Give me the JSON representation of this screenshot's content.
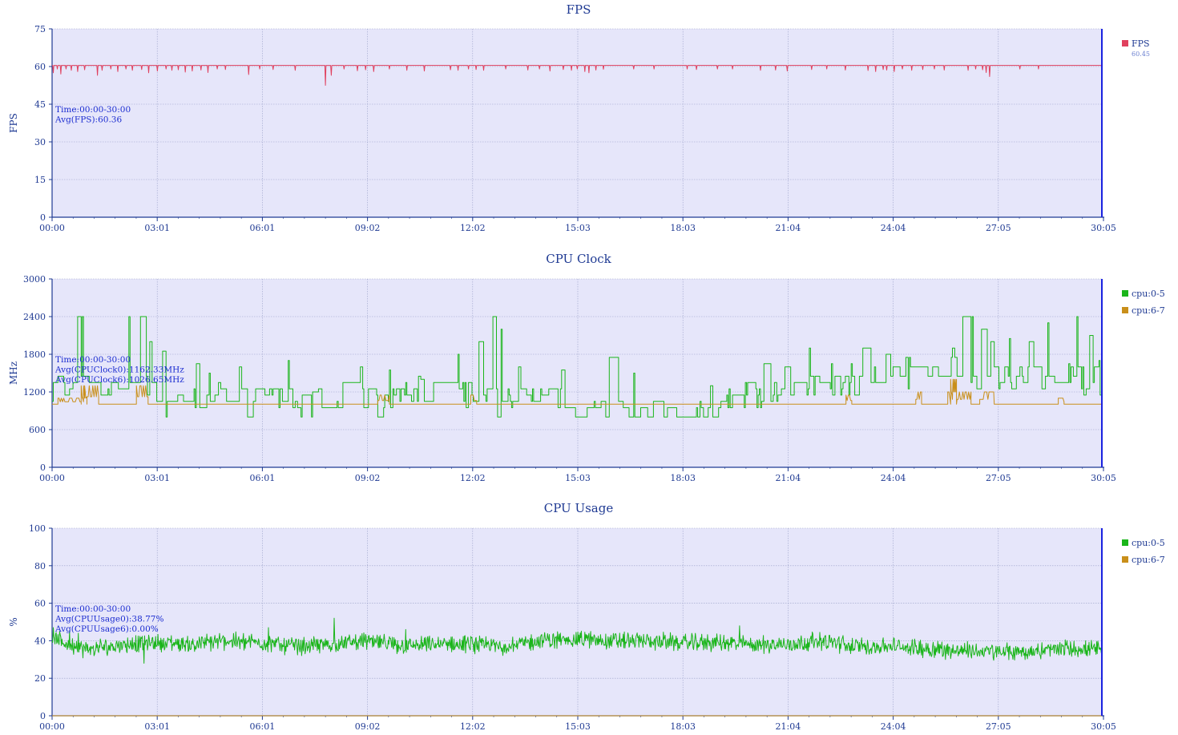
{
  "colors": {
    "plot_bg": "#e6e6fa",
    "grid": "#9aa0c8",
    "axis": "#1f3a93",
    "end_marker": "#1a22e0",
    "fps": "#e0405e",
    "cpu_0_5": "#1ab51a",
    "cpu_6_7": "#c98f1a"
  },
  "chart_data": [
    {
      "type": "line",
      "title": "FPS",
      "ylabel": "FPS",
      "xlabel": "",
      "ylim": [
        0,
        75
      ],
      "yticks": [
        "0",
        "15",
        "30",
        "45",
        "60",
        "75"
      ],
      "xlim_seconds": [
        0,
        1805
      ],
      "xticks": [
        "00:00",
        "03:01",
        "06:01",
        "09:02",
        "12:02",
        "15:03",
        "18:03",
        "21:04",
        "24:04",
        "27:05",
        "30:05"
      ],
      "grid": true,
      "legend_position": "right",
      "legend": [
        {
          "name": "FPS",
          "value": "60.45",
          "color_key": "fps"
        }
      ],
      "annotation": [
        "Time:00:00-30:00",
        "Avg(FPS):60.36"
      ],
      "series": [
        {
          "name": "FPS",
          "color_key": "fps",
          "baseline": 60.45,
          "dips": [
            [
              2,
              57.5
            ],
            [
              9,
              59
            ],
            [
              15,
              57
            ],
            [
              24,
              59
            ],
            [
              33,
              58.5
            ],
            [
              44,
              58
            ],
            [
              56,
              58.7
            ],
            [
              78,
              56.5
            ],
            [
              86,
              58.5
            ],
            [
              101,
              59
            ],
            [
              113,
              58
            ],
            [
              127,
              59
            ],
            [
              138,
              58.5
            ],
            [
              154,
              58.8
            ],
            [
              166,
              57.5
            ],
            [
              181,
              58.2
            ],
            [
              196,
              59
            ],
            [
              206,
              58.5
            ],
            [
              217,
              58.7
            ],
            [
              229,
              57.8
            ],
            [
              241,
              58.2
            ],
            [
              256,
              58.6
            ],
            [
              268,
              57.6
            ],
            [
              284,
              59
            ],
            [
              298,
              58.8
            ],
            [
              338,
              56.8
            ],
            [
              357,
              59
            ],
            [
              380,
              58.8
            ],
            [
              418,
              58.5
            ],
            [
              470,
              52.5
            ],
            [
              480,
              56.5
            ],
            [
              502,
              59
            ],
            [
              525,
              58.3
            ],
            [
              539,
              58.7
            ],
            [
              553,
              58
            ],
            [
              580,
              59
            ],
            [
              610,
              58.5
            ],
            [
              640,
              58.2
            ],
            [
              685,
              58.7
            ],
            [
              698,
              58.5
            ],
            [
              716,
              59
            ],
            [
              729,
              58.8
            ],
            [
              742,
              58.5
            ],
            [
              780,
              59
            ],
            [
              818,
              58.6
            ],
            [
              838,
              59
            ],
            [
              856,
              58.2
            ],
            [
              879,
              58.8
            ],
            [
              893,
              58.5
            ],
            [
              903,
              59
            ],
            [
              916,
              58
            ],
            [
              923,
              57.5
            ],
            [
              935,
              58.6
            ],
            [
              948,
              58.9
            ],
            [
              1000,
              59
            ],
            [
              1035,
              59
            ],
            [
              1092,
              59
            ],
            [
              1108,
              58.8
            ],
            [
              1144,
              59
            ],
            [
              1170,
              59
            ],
            [
              1218,
              58.5
            ],
            [
              1244,
              58.6
            ],
            [
              1264,
              58.2
            ],
            [
              1306,
              58.8
            ],
            [
              1332,
              59
            ],
            [
              1364,
              58.6
            ],
            [
              1403,
              58.4
            ],
            [
              1416,
              58
            ],
            [
              1429,
              58.8
            ],
            [
              1435,
              58.6
            ],
            [
              1448,
              58
            ],
            [
              1462,
              59
            ],
            [
              1478,
              58.5
            ],
            [
              1497,
              58.8
            ],
            [
              1517,
              59
            ],
            [
              1534,
              58.6
            ],
            [
              1575,
              58.5
            ],
            [
              1588,
              59
            ],
            [
              1600,
              58.7
            ],
            [
              1606,
              57.6
            ],
            [
              1612,
              56
            ],
            [
              1664,
              59
            ],
            [
              1696,
              59
            ]
          ]
        }
      ]
    },
    {
      "type": "line",
      "title": "CPU Clock",
      "ylabel": "MHz",
      "xlabel": "",
      "ylim": [
        0,
        3000
      ],
      "yticks": [
        "0",
        "600",
        "1200",
        "1800",
        "2400",
        "3000"
      ],
      "xlim_seconds": [
        0,
        1805
      ],
      "xticks": [
        "00:00",
        "03:01",
        "06:01",
        "09:02",
        "12:02",
        "15:03",
        "18:03",
        "21:04",
        "24:04",
        "27:05",
        "30:05"
      ],
      "grid": true,
      "legend_position": "right",
      "legend": [
        {
          "name": "cpu:0-5",
          "color_key": "cpu_0_5"
        },
        {
          "name": "cpu:6-7",
          "color_key": "cpu_6_7"
        }
      ],
      "annotation": [
        "Time:00:00-30:00",
        "Avg(CPUClock0):1162.33MHz",
        "Avg(CPUClock6):1026.65MHz"
      ],
      "series": [
        {
          "name": "cpu:0-5",
          "color_key": "cpu_0_5",
          "profile": [
            [
              0,
              1250
            ],
            [
              30,
              1300
            ],
            [
              50,
              1550
            ],
            [
              60,
              1350
            ],
            [
              90,
              1200
            ],
            [
              130,
              1250
            ],
            [
              160,
              1300
            ],
            [
              190,
              1050
            ],
            [
              250,
              1100
            ],
            [
              290,
              1250
            ],
            [
              330,
              1050
            ],
            [
              400,
              1100
            ],
            [
              440,
              1000
            ],
            [
              520,
              1200
            ],
            [
              560,
              1050
            ],
            [
              610,
              1200
            ],
            [
              680,
              1350
            ],
            [
              720,
              1150
            ],
            [
              760,
              1050
            ],
            [
              830,
              1150
            ],
            [
              870,
              1050
            ],
            [
              930,
              880
            ],
            [
              1010,
              860
            ],
            [
              1080,
              860
            ],
            [
              1140,
              900
            ],
            [
              1180,
              1150
            ],
            [
              1250,
              1250
            ],
            [
              1300,
              1300
            ],
            [
              1360,
              1350
            ],
            [
              1400,
              1300
            ],
            [
              1440,
              1450
            ],
            [
              1520,
              1550
            ],
            [
              1600,
              1450
            ],
            [
              1680,
              1450
            ],
            [
              1740,
              1400
            ],
            [
              1805,
              1350
            ]
          ],
          "spikes": [
            [
              43,
              2400
            ],
            [
              51,
              2400
            ],
            [
              131,
              2400
            ],
            [
              152,
              2400
            ],
            [
              168,
              2000
            ],
            [
              190,
              1850
            ],
            [
              247,
              1650
            ],
            [
              269,
              1500
            ],
            [
              322,
              1600
            ],
            [
              406,
              1700
            ],
            [
              448,
              1200
            ],
            [
              530,
              1600
            ],
            [
              580,
              1550
            ],
            [
              634,
              1400
            ],
            [
              697,
              1800
            ],
            [
              733,
              2400
            ],
            [
              733,
              2000
            ],
            [
              758,
              2400
            ],
            [
              771,
              2200
            ],
            [
              802,
              1600
            ],
            [
              876,
              1550
            ],
            [
              958,
              1750
            ],
            [
              1000,
              1500
            ],
            [
              1132,
              1300
            ],
            [
              1196,
              1350
            ],
            [
              1224,
              1650
            ],
            [
              1260,
              1600
            ],
            [
              1302,
              1900
            ],
            [
              1340,
              1650
            ],
            [
              1373,
              1650
            ],
            [
              1394,
              1900
            ],
            [
              1434,
              1800
            ],
            [
              1467,
              1750
            ],
            [
              1547,
              1900
            ],
            [
              1566,
              2400
            ],
            [
              1582,
              2400
            ],
            [
              1598,
              2200
            ],
            [
              1613,
              2000
            ],
            [
              1646,
              2050
            ],
            [
              1680,
              2000
            ],
            [
              1711,
              2300
            ],
            [
              1748,
              1650
            ],
            [
              1762,
              2400
            ],
            [
              1784,
              2100
            ],
            [
              1799,
              1700
            ]
          ]
        },
        {
          "name": "cpu:6-7",
          "color_key": "cpu_6_7",
          "baseline": 1005,
          "bumps": [
            [
              [
                10,
                60
              ],
              1100
            ],
            [
              [
                50,
                80
              ],
              1300
            ],
            [
              [
                145,
                165
              ],
              1300
            ],
            [
              [
                560,
                580
              ],
              1150
            ],
            [
              [
                720,
                730
              ],
              1150
            ],
            [
              [
                1365,
                1375
              ],
              1150
            ],
            [
              [
                1485,
                1495
              ],
              1200
            ],
            [
              [
                1540,
                1580
              ],
              1200
            ],
            [
              [
                1545,
                1555
              ],
              1400
            ],
            [
              [
                1595,
                1620
              ],
              1200
            ],
            [
              [
                1730,
                1740
              ],
              1100
            ]
          ]
        }
      ]
    },
    {
      "type": "line",
      "title": "CPU Usage",
      "ylabel": "%",
      "xlabel": "",
      "ylim": [
        0,
        100
      ],
      "yticks": [
        "0",
        "20",
        "40",
        "60",
        "80",
        "100"
      ],
      "xlim_seconds": [
        0,
        1805
      ],
      "xticks": [
        "00:00",
        "03:01",
        "06:01",
        "09:02",
        "12:02",
        "15:03",
        "18:03",
        "21:04",
        "24:04",
        "27:05",
        "30:05"
      ],
      "grid": true,
      "legend_position": "right",
      "legend": [
        {
          "name": "cpu:0-5",
          "color_key": "cpu_0_5"
        },
        {
          "name": "cpu:6-7",
          "color_key": "cpu_6_7"
        }
      ],
      "annotation": [
        "Time:00:00-30:00",
        "Avg(CPUUsage0):38.77%",
        "Avg(CPUUsage6):0.00%"
      ],
      "series": [
        {
          "name": "cpu:0-5",
          "color_key": "cpu_0_5",
          "profile": [
            [
              0,
              41
            ],
            [
              20,
              39
            ],
            [
              60,
              35
            ],
            [
              120,
              38
            ],
            [
              180,
              39
            ],
            [
              240,
              38
            ],
            [
              300,
              40
            ],
            [
              360,
              39
            ],
            [
              420,
              37
            ],
            [
              480,
              38
            ],
            [
              540,
              40
            ],
            [
              600,
              37
            ],
            [
              660,
              38
            ],
            [
              720,
              38
            ],
            [
              780,
              37
            ],
            [
              840,
              40
            ],
            [
              900,
              41
            ],
            [
              960,
              40
            ],
            [
              1020,
              40
            ],
            [
              1080,
              39
            ],
            [
              1140,
              39
            ],
            [
              1200,
              38
            ],
            [
              1260,
              38
            ],
            [
              1320,
              40
            ],
            [
              1380,
              37
            ],
            [
              1440,
              37
            ],
            [
              1500,
              36
            ],
            [
              1560,
              35
            ],
            [
              1620,
              34
            ],
            [
              1680,
              34
            ],
            [
              1740,
              36
            ],
            [
              1805,
              35
            ]
          ],
          "spikes": [
            [
              2,
              47
            ],
            [
              30,
              45
            ],
            [
              45,
              44
            ],
            [
              98,
              35
            ],
            [
              158,
              28
            ],
            [
              250,
              40
            ],
            [
              372,
              47
            ],
            [
              408,
              38
            ],
            [
              485,
              52
            ],
            [
              566,
              41
            ],
            [
              608,
              46
            ],
            [
              691,
              41
            ],
            [
              792,
              42
            ],
            [
              955,
              38
            ],
            [
              1010,
              43
            ],
            [
              1182,
              48
            ],
            [
              1290,
              37
            ],
            [
              1350,
              38
            ],
            [
              1536,
              30
            ]
          ]
        },
        {
          "name": "cpu:6-7",
          "color_key": "cpu_6_7",
          "baseline": 0
        }
      ]
    }
  ]
}
